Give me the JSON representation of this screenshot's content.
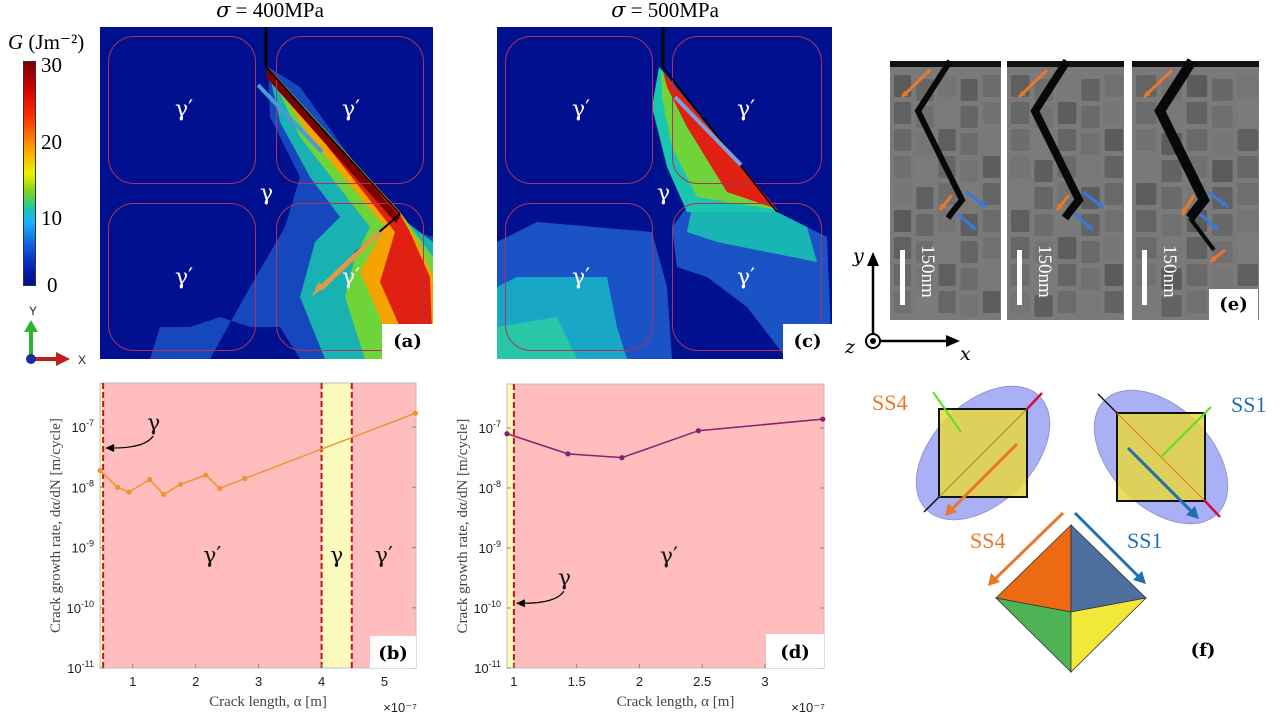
{
  "panels": {
    "a": {
      "title_sym": "σ",
      "title_rest": " = 400MPa",
      "tag": "(a)",
      "labels": {
        "gp_tl": "γ′",
        "gp_tr": "γ′",
        "gp_bl": "γ′",
        "gp_br": "γ′",
        "g": "γ"
      }
    },
    "c": {
      "title_sym": "σ",
      "title_rest": " = 500MPa",
      "tag": "(c)",
      "labels": {
        "gp_tl": "γ′",
        "gp_tr": "γ′",
        "gp_bl": "γ′",
        "gp_br": "γ′",
        "g": "γ"
      }
    },
    "e": {
      "tag": "(e)",
      "scale_bar": "150nm",
      "axes": {
        "y": "y",
        "x": "x",
        "z": "z"
      }
    },
    "f": {
      "tag": "(f)",
      "ss4": "SS4",
      "ss1": "SS1",
      "colors": {
        "ss4": "#e8782a",
        "ss1": "#1f6fb5"
      }
    }
  },
  "colorbar": {
    "label": "G (Jm⁻²)",
    "label_sym": "G",
    "label_rest": " (Jm⁻²)",
    "ticks": [
      "30",
      "20",
      "10",
      "0"
    ],
    "min": 0,
    "max": 30
  },
  "triad": {
    "y": "Y",
    "x": "X"
  },
  "chart_data": [
    {
      "type": "line",
      "id": "b",
      "tag": "(b)",
      "title": "",
      "xlabel": "Crack length, α [m]",
      "ylabel": "Crack growth rate, dα/dN [m/cycle]",
      "x_multiplier": "×10⁻⁷",
      "yscale": "log",
      "xlim": [
        0.48,
        5.5
      ],
      "ylim": [
        1e-11,
        5.4e-07
      ],
      "xticks": [
        1,
        2,
        3,
        4,
        5
      ],
      "xtick_labels": [
        "1",
        "2",
        "3",
        "4",
        "5"
      ],
      "yticks": [
        1e-11,
        1e-10,
        1e-09,
        1e-08,
        1e-07
      ],
      "ytick_labels": [
        [
          "10",
          "-11"
        ],
        [
          "10",
          "-10"
        ],
        [
          "10",
          "-9"
        ],
        [
          "10",
          "-8"
        ],
        [
          "10",
          "-7"
        ]
      ],
      "regions": [
        {
          "label": "",
          "from": 0.48,
          "to": 0.53,
          "phase": "gamma"
        },
        {
          "label": "γ′",
          "from": 0.53,
          "to": 4.0,
          "phase": "gamma_prime"
        },
        {
          "label": "γ",
          "from": 4.0,
          "to": 4.48,
          "phase": "gamma"
        },
        {
          "label": "γ′",
          "from": 4.48,
          "to": 5.5,
          "phase": "gamma_prime"
        }
      ],
      "boundaries": [
        0.53,
        4.0,
        4.48
      ],
      "annotation": {
        "text": "γ",
        "target_x": 0.53,
        "target_y": 4.5e-08
      },
      "series": [
        {
          "name": "400MPa",
          "color": "#f0932e",
          "x": [
            0.48,
            0.76,
            0.94,
            1.27,
            1.49,
            1.76,
            2.16,
            2.38,
            2.78,
            5.49
          ],
          "y": [
            1.9e-08,
            1e-08,
            8.3e-09,
            1.35e-08,
            7.6e-09,
            1.12e-08,
            1.6e-08,
            9.6e-09,
            1.4e-08,
            1.7e-07
          ]
        }
      ],
      "colors": {
        "gamma": "#fafbbd",
        "gamma_prime": "#ffbdbd",
        "boundary": "#c0151b"
      }
    },
    {
      "type": "line",
      "id": "d",
      "tag": "(d)",
      "title": "",
      "xlabel": "Crack length, α [m]",
      "ylabel": "Crack growth rate, dα/dN [m/cycle]",
      "x_multiplier": "×10⁻⁷",
      "yscale": "log",
      "xlim": [
        0.945,
        3.47
      ],
      "ylim": [
        1e-11,
        5.4e-07
      ],
      "xticks": [
        1,
        1.5,
        2,
        2.5,
        3
      ],
      "xtick_labels": [
        "1",
        "1.5",
        "2",
        "2.5",
        "3"
      ],
      "yticks": [
        1e-11,
        1e-10,
        1e-09,
        1e-08,
        1e-07
      ],
      "ytick_labels": [
        [
          "10",
          "-11"
        ],
        [
          "10",
          "-10"
        ],
        [
          "10",
          "-9"
        ],
        [
          "10",
          "-8"
        ],
        [
          "10",
          "-7"
        ]
      ],
      "regions": [
        {
          "label": "",
          "from": 0.945,
          "to": 1.0,
          "phase": "gamma"
        },
        {
          "label": "γ′",
          "from": 1.0,
          "to": 3.47,
          "phase": "gamma_prime"
        }
      ],
      "boundaries": [
        1.0
      ],
      "annotation": {
        "text": "γ",
        "target_x": 1.0,
        "target_y": 1.2e-10
      },
      "series": [
        {
          "name": "500MPa",
          "color": "#8b1f6e",
          "x": [
            0.945,
            1.43,
            1.86,
            2.47,
            3.46
          ],
          "y": [
            8e-08,
            3.7e-08,
            3.2e-08,
            9e-08,
            1.4e-07
          ]
        }
      ],
      "colors": {
        "gamma": "#fafbbd",
        "gamma_prime": "#ffbdbd",
        "boundary": "#c0151b"
      }
    }
  ]
}
